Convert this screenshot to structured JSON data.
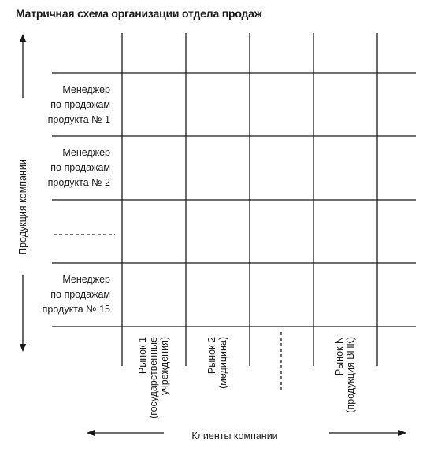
{
  "title": "Матричная схема организации отдела продаж",
  "y_axis_label": "Продукция компании",
  "x_axis_label": "Клиенты компании",
  "rows": [
    {
      "lines": [
        "Менеджер",
        "по продажам",
        "продукта № 1"
      ]
    },
    {
      "lines": [
        "Менеджер",
        "по продажам",
        "продукта № 2"
      ]
    },
    {
      "lines": []
    },
    {
      "lines": [
        "Менеджер",
        "по продажам",
        "продукта № 15"
      ]
    }
  ],
  "columns": [
    {
      "lines": [
        "Рынок 1",
        "(государственные",
        "учреждения)"
      ]
    },
    {
      "lines": [
        "Рынок 2",
        "(медицина)"
      ]
    },
    {
      "lines": []
    },
    {
      "lines": [
        "Рынок N",
        "(продукция ВПК)"
      ]
    }
  ]
}
